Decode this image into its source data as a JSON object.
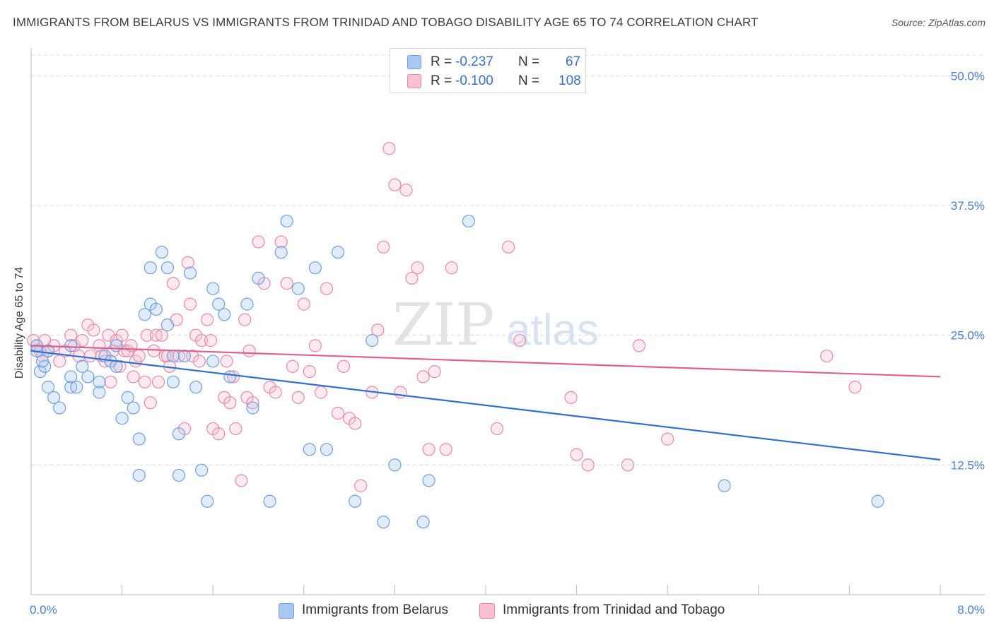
{
  "title": "IMMIGRANTS FROM BELARUS VS IMMIGRANTS FROM TRINIDAD AND TOBAGO DISABILITY AGE 65 TO 74 CORRELATION CHART",
  "source": "Source: ZipAtlas.com",
  "watermark": {
    "zip": "ZIP",
    "atlas": "atlas"
  },
  "legend": {
    "r_label": "R =",
    "n_label": "N =",
    "series": [
      {
        "r": "-0.237",
        "n": "67",
        "color": "#a8c8f0",
        "border": "#6f9fdc"
      },
      {
        "r": "-0.100",
        "n": "108",
        "color": "#f8c0d0",
        "border": "#e88aa8"
      }
    ]
  },
  "bottom_legend": [
    "Immigrants from Belarus",
    "Immigrants from Trinidad and Tobago"
  ],
  "colors": {
    "blue_line": "#2f6fd0",
    "pink_line": "#e06090",
    "axis_text": "#4a7fd1"
  },
  "chart_data": {
    "type": "scatter",
    "title": "IMMIGRANTS FROM BELARUS VS IMMIGRANTS FROM TRINIDAD AND TOBAGO DISABILITY AGE 65 TO 74 CORRELATION CHART",
    "xlabel": "",
    "ylabel": "Disability Age 65 to 74",
    "xlim": [
      0,
      8.0
    ],
    "ylim": [
      0,
      52
    ],
    "x_tick_labels": [
      "0.0%",
      "8.0%"
    ],
    "y_ticks": [
      12.5,
      25.0,
      37.5,
      50.0
    ],
    "y_tick_labels": [
      "12.5%",
      "25.0%",
      "37.5%",
      "50.0%"
    ],
    "grid": true,
    "legend_position": "top-center",
    "series": [
      {
        "name": "Immigrants from Belarus",
        "trend": {
          "x": [
            0.0,
            8.0
          ],
          "y": [
            23.5,
            13.0
          ]
        },
        "points": [
          [
            0.05,
            24.0
          ],
          [
            0.08,
            21.5
          ],
          [
            0.12,
            22.0
          ],
          [
            0.15,
            23.5
          ],
          [
            0.15,
            20.0
          ],
          [
            0.2,
            19.0
          ],
          [
            0.25,
            18.0
          ],
          [
            0.35,
            24.0
          ],
          [
            0.35,
            20.0
          ],
          [
            0.35,
            21.0
          ],
          [
            0.4,
            20.0
          ],
          [
            0.5,
            21.0
          ],
          [
            0.45,
            22.0
          ],
          [
            0.6,
            20.5
          ],
          [
            0.6,
            19.5
          ],
          [
            0.65,
            23.0
          ],
          [
            0.7,
            22.5
          ],
          [
            0.75,
            22.0
          ],
          [
            0.75,
            24.0
          ],
          [
            0.8,
            17.0
          ],
          [
            0.85,
            19.0
          ],
          [
            0.9,
            18.0
          ],
          [
            0.95,
            15.0
          ],
          [
            0.95,
            11.5
          ],
          [
            1.0,
            27.0
          ],
          [
            1.05,
            31.5
          ],
          [
            1.05,
            28.0
          ],
          [
            1.1,
            27.5
          ],
          [
            1.15,
            33.0
          ],
          [
            1.2,
            26.0
          ],
          [
            1.2,
            31.5
          ],
          [
            1.25,
            20.5
          ],
          [
            1.25,
            23.0
          ],
          [
            1.3,
            15.5
          ],
          [
            1.3,
            11.5
          ],
          [
            1.35,
            23.0
          ],
          [
            1.4,
            31.0
          ],
          [
            1.45,
            20.0
          ],
          [
            1.5,
            12.0
          ],
          [
            1.55,
            9.0
          ],
          [
            1.6,
            29.5
          ],
          [
            1.6,
            22.5
          ],
          [
            1.65,
            28.0
          ],
          [
            1.7,
            27.0
          ],
          [
            1.75,
            21.0
          ],
          [
            1.9,
            28.0
          ],
          [
            1.95,
            18.0
          ],
          [
            2.0,
            30.5
          ],
          [
            2.1,
            9.0
          ],
          [
            2.2,
            33.0
          ],
          [
            2.25,
            36.0
          ],
          [
            2.35,
            29.5
          ],
          [
            2.45,
            14.0
          ],
          [
            2.5,
            31.5
          ],
          [
            2.6,
            14.0
          ],
          [
            2.7,
            33.0
          ],
          [
            2.85,
            9.0
          ],
          [
            3.0,
            24.5
          ],
          [
            3.1,
            7.0
          ],
          [
            3.2,
            12.5
          ],
          [
            3.45,
            7.0
          ],
          [
            3.5,
            11.0
          ],
          [
            3.85,
            36.0
          ],
          [
            6.1,
            10.5
          ],
          [
            7.45,
            9.0
          ],
          [
            0.05,
            23.5
          ],
          [
            0.1,
            22.5
          ]
        ]
      },
      {
        "name": "Immigrants from Trinidad and Tobago",
        "trend": {
          "x": [
            0.0,
            8.0
          ],
          "y": [
            24.0,
            21.0
          ]
        },
        "points": [
          [
            0.02,
            24.5
          ],
          [
            0.05,
            24.0
          ],
          [
            0.08,
            23.5
          ],
          [
            0.1,
            23.0
          ],
          [
            0.12,
            24.5
          ],
          [
            0.15,
            23.5
          ],
          [
            0.2,
            24.0
          ],
          [
            0.25,
            22.5
          ],
          [
            0.3,
            23.5
          ],
          [
            0.35,
            25.0
          ],
          [
            0.38,
            24.0
          ],
          [
            0.42,
            23.0
          ],
          [
            0.45,
            24.5
          ],
          [
            0.5,
            26.0
          ],
          [
            0.52,
            23.0
          ],
          [
            0.55,
            25.5
          ],
          [
            0.6,
            24.0
          ],
          [
            0.62,
            23.0
          ],
          [
            0.65,
            22.5
          ],
          [
            0.68,
            25.0
          ],
          [
            0.7,
            20.5
          ],
          [
            0.72,
            23.5
          ],
          [
            0.75,
            24.5
          ],
          [
            0.78,
            22.0
          ],
          [
            0.8,
            25.0
          ],
          [
            0.82,
            23.5
          ],
          [
            0.85,
            23.5
          ],
          [
            0.88,
            24.0
          ],
          [
            0.9,
            21.0
          ],
          [
            0.92,
            22.5
          ],
          [
            0.95,
            23.0
          ],
          [
            1.0,
            20.5
          ],
          [
            1.02,
            25.0
          ],
          [
            1.05,
            18.5
          ],
          [
            1.08,
            23.5
          ],
          [
            1.1,
            25.0
          ],
          [
            1.12,
            20.5
          ],
          [
            1.15,
            25.0
          ],
          [
            1.18,
            23.0
          ],
          [
            1.2,
            23.0
          ],
          [
            1.22,
            22.0
          ],
          [
            1.25,
            30.0
          ],
          [
            1.28,
            26.5
          ],
          [
            1.3,
            23.0
          ],
          [
            1.35,
            16.0
          ],
          [
            1.38,
            32.0
          ],
          [
            1.4,
            28.0
          ],
          [
            1.42,
            23.0
          ],
          [
            1.45,
            25.0
          ],
          [
            1.48,
            22.5
          ],
          [
            1.5,
            24.5
          ],
          [
            1.55,
            26.5
          ],
          [
            1.58,
            24.5
          ],
          [
            1.6,
            16.0
          ],
          [
            1.65,
            15.5
          ],
          [
            1.7,
            19.0
          ],
          [
            1.72,
            22.5
          ],
          [
            1.75,
            18.5
          ],
          [
            1.78,
            21.0
          ],
          [
            1.8,
            16.0
          ],
          [
            1.85,
            11.0
          ],
          [
            1.88,
            26.5
          ],
          [
            1.9,
            19.0
          ],
          [
            1.92,
            23.5
          ],
          [
            1.95,
            18.5
          ],
          [
            2.0,
            34.0
          ],
          [
            2.05,
            30.0
          ],
          [
            2.1,
            20.0
          ],
          [
            2.15,
            19.5
          ],
          [
            2.2,
            34.0
          ],
          [
            2.25,
            30.0
          ],
          [
            2.3,
            22.0
          ],
          [
            2.35,
            19.0
          ],
          [
            2.4,
            28.0
          ],
          [
            2.45,
            21.5
          ],
          [
            2.5,
            24.0
          ],
          [
            2.55,
            19.5
          ],
          [
            2.6,
            29.5
          ],
          [
            2.7,
            17.5
          ],
          [
            2.75,
            22.0
          ],
          [
            2.8,
            17.0
          ],
          [
            2.85,
            16.5
          ],
          [
            2.9,
            10.5
          ],
          [
            3.0,
            19.5
          ],
          [
            3.05,
            25.5
          ],
          [
            3.1,
            33.5
          ],
          [
            3.15,
            43.0
          ],
          [
            3.2,
            39.5
          ],
          [
            3.25,
            19.5
          ],
          [
            3.3,
            39.0
          ],
          [
            3.35,
            30.5
          ],
          [
            3.4,
            31.5
          ],
          [
            3.45,
            21.0
          ],
          [
            3.5,
            14.0
          ],
          [
            3.55,
            21.5
          ],
          [
            3.65,
            14.0
          ],
          [
            3.7,
            31.5
          ],
          [
            4.1,
            16.0
          ],
          [
            4.2,
            33.5
          ],
          [
            4.3,
            24.5
          ],
          [
            4.75,
            19.0
          ],
          [
            4.8,
            13.5
          ],
          [
            4.9,
            12.5
          ],
          [
            5.25,
            12.5
          ],
          [
            5.35,
            24.0
          ],
          [
            5.6,
            15.0
          ],
          [
            7.0,
            23.0
          ],
          [
            7.25,
            20.0
          ]
        ]
      }
    ]
  }
}
